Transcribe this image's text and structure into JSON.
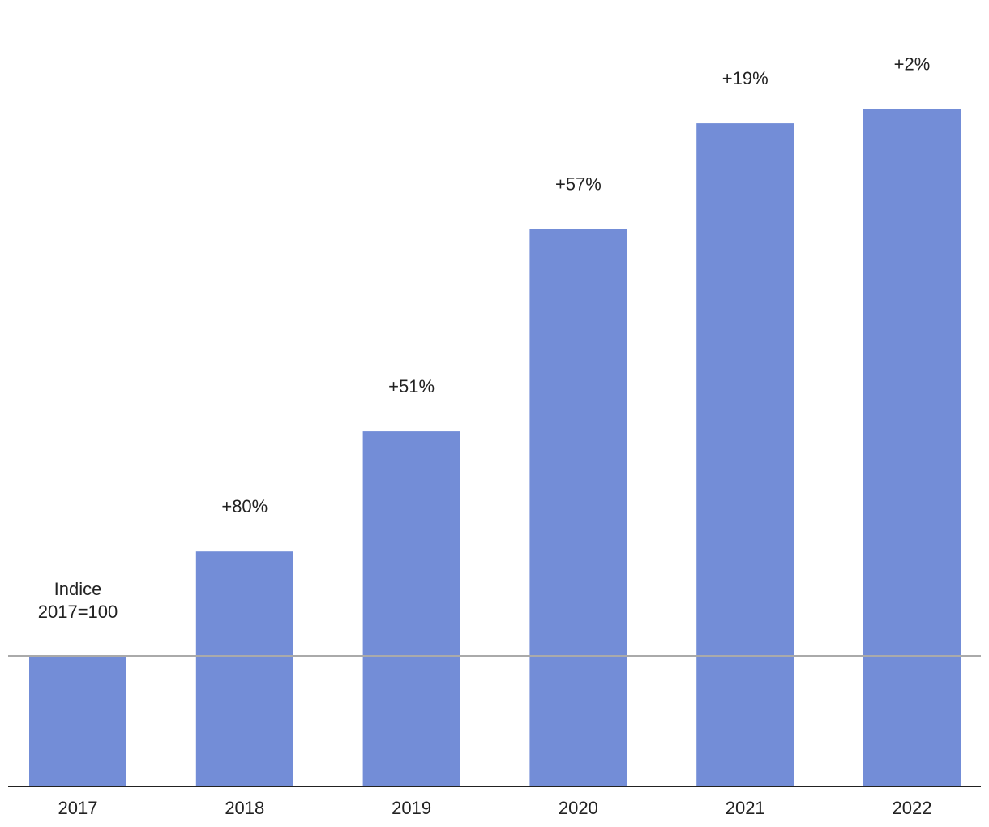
{
  "chart_data": {
    "type": "bar",
    "categories": [
      "2017",
      "2018",
      "2019",
      "2020",
      "2021",
      "2022"
    ],
    "values": [
      100,
      180,
      272,
      427,
      508,
      519
    ],
    "data_labels": [
      "",
      "+80%",
      "+51%",
      "+57%",
      "+19%",
      "+2%"
    ],
    "reference_line": {
      "value": 100,
      "label_lines": [
        "Indice",
        "2017=100"
      ]
    },
    "ylim": [
      0,
      550
    ],
    "grid": false,
    "legend": "none",
    "colors": {
      "bar": "#738dd7",
      "reference_line": "#aaaaaa",
      "axis": "#222222",
      "text": "#222222"
    }
  }
}
